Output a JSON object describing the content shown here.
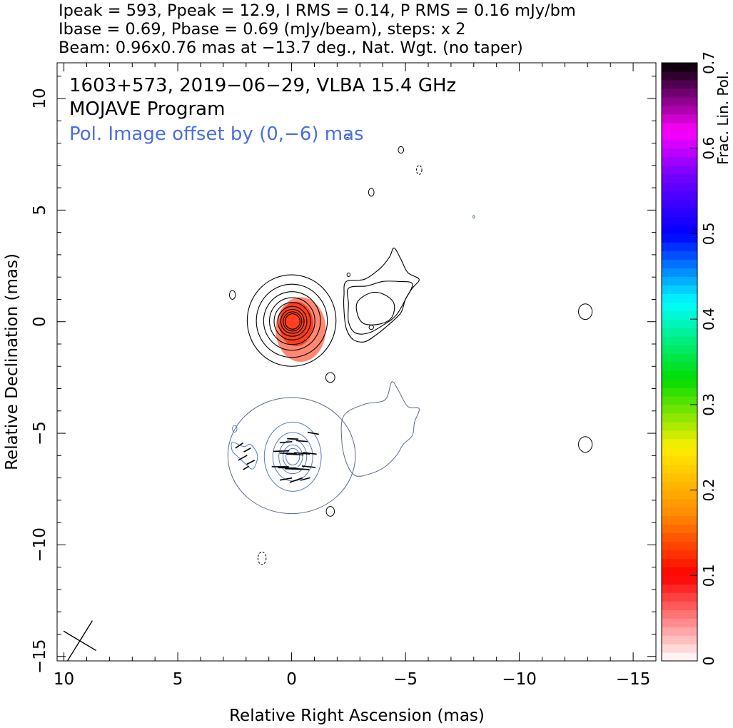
{
  "header": {
    "line1": "Ipeak = 593, Ppeak = 12.9, I RMS = 0.14, P RMS = 0.16 mJy/bm",
    "line2": "Ibase = 0.69, Pbase = 0.69 (mJy/beam), steps: x 2",
    "line3": "Beam: 0.96x0.76 mas at −13.7 deg., Nat. Wgt. (no taper)"
  },
  "chart_data": {
    "type": "contour",
    "title": "1603+573, 2019−06−29, VLBA 15.4 GHz",
    "subtitle": "MOJAVE Program",
    "note": "Pol. Image offset by (0,−6) mas",
    "xlabel": "Relative Right Ascension (mas)",
    "ylabel": "Relative Declination (mas)",
    "xlim": [
      10.3,
      -16
    ],
    "ylim": [
      -15.2,
      11.6
    ],
    "x_ticks": [
      {
        "v": 10,
        "label": "10"
      },
      {
        "v": 5,
        "label": "5"
      },
      {
        "v": 0,
        "label": "0"
      },
      {
        "v": -5,
        "label": "−5"
      },
      {
        "v": -10,
        "label": "−10"
      },
      {
        "v": -15,
        "label": "−15"
      }
    ],
    "y_ticks": [
      {
        "v": 10,
        "label": "10"
      },
      {
        "v": 5,
        "label": "5"
      },
      {
        "v": 0,
        "label": "0"
      },
      {
        "v": -5,
        "label": "−5"
      },
      {
        "v": -10,
        "label": "−10"
      },
      {
        "v": -15,
        "label": "−15"
      }
    ],
    "colorbar": {
      "label": "Frac. Lin. Pol.",
      "range": [
        0,
        0.7
      ],
      "ticks": [
        {
          "v": 0,
          "label": "0"
        },
        {
          "v": 0.1,
          "label": "0.1"
        },
        {
          "v": 0.2,
          "label": "0.2"
        },
        {
          "v": 0.3,
          "label": "0.3"
        },
        {
          "v": 0.4,
          "label": "0.4"
        },
        {
          "v": 0.5,
          "label": "0.5"
        },
        {
          "v": 0.6,
          "label": "0.6"
        },
        {
          "v": 0.7,
          "label": "0.7"
        }
      ],
      "stops": [
        {
          "v": 0.0,
          "c": "#ffffff"
        },
        {
          "v": 0.1,
          "c": "#ff0000"
        },
        {
          "v": 0.17,
          "c": "#ff8800"
        },
        {
          "v": 0.25,
          "c": "#ffee00"
        },
        {
          "v": 0.33,
          "c": "#00dd00"
        },
        {
          "v": 0.42,
          "c": "#00ffff"
        },
        {
          "v": 0.5,
          "c": "#0000ff"
        },
        {
          "v": 0.57,
          "c": "#7700ff"
        },
        {
          "v": 0.62,
          "c": "#ff00ff"
        },
        {
          "v": 0.7,
          "c": "#000000"
        }
      ]
    },
    "colors": {
      "intensity_contour": "#000000",
      "pol_contour": "#5577cc",
      "pol_annotation": "#4a6ee0"
    },
    "core": {
      "ra": 0,
      "dec": 0,
      "levels": 9,
      "max_rx": 1.95,
      "max_ry": 2.05,
      "frac_pol": 0.12
    },
    "jet_contours": [
      {
        "name": "jet-outer",
        "pts": [
          [
            -2.4,
            1.8
          ],
          [
            -3.2,
            1.9
          ],
          [
            -3.9,
            2.4
          ],
          [
            -4.3,
            2.9
          ],
          [
            -4.5,
            3.3
          ],
          [
            -4.8,
            2.8
          ],
          [
            -5.1,
            2.2
          ],
          [
            -5.6,
            1.9
          ],
          [
            -5.3,
            1.5
          ],
          [
            -5.0,
            1.0
          ],
          [
            -4.8,
            0.4
          ],
          [
            -4.3,
            -0.1
          ],
          [
            -3.7,
            -0.6
          ],
          [
            -3.2,
            -0.9
          ],
          [
            -2.7,
            -0.8
          ],
          [
            -2.4,
            -0.3
          ],
          [
            -2.3,
            0.5
          ],
          [
            -2.3,
            1.2
          ]
        ]
      },
      {
        "name": "jet-mid",
        "pts": [
          [
            -2.5,
            1.5
          ],
          [
            -3.3,
            1.6
          ],
          [
            -4.0,
            1.8
          ],
          [
            -4.7,
            1.8
          ],
          [
            -5.3,
            1.7
          ],
          [
            -5.0,
            1.0
          ],
          [
            -4.6,
            0.3
          ],
          [
            -4.1,
            -0.1
          ],
          [
            -3.4,
            -0.5
          ],
          [
            -2.8,
            -0.5
          ],
          [
            -2.5,
            0.0
          ],
          [
            -2.5,
            0.8
          ]
        ]
      },
      {
        "name": "jet-inner",
        "pts": [
          [
            -2.9,
            0.9
          ],
          [
            -3.5,
            1.3
          ],
          [
            -4.1,
            1.2
          ],
          [
            -4.5,
            0.8
          ],
          [
            -4.4,
            0.2
          ],
          [
            -3.9,
            -0.1
          ],
          [
            -3.2,
            -0.1
          ],
          [
            -2.9,
            0.3
          ]
        ]
      }
    ],
    "small_contours": [
      {
        "ra": 2.6,
        "dec": 1.2,
        "rx": 0.13,
        "ry": 0.2,
        "dashed": false,
        "pol": false
      },
      {
        "ra": -4.8,
        "dec": 7.7,
        "rx": 0.12,
        "ry": 0.15,
        "dashed": false,
        "pol": false
      },
      {
        "ra": -5.6,
        "dec": 6.8,
        "rx": 0.12,
        "ry": 0.2,
        "dashed": true,
        "pol": false
      },
      {
        "ra": -3.5,
        "dec": 5.8,
        "rx": 0.12,
        "ry": 0.18,
        "dashed": false,
        "pol": false
      },
      {
        "ra": -2.5,
        "dec": 8.3,
        "rx": 0.15,
        "ry": 0.05,
        "dashed": true,
        "pol": false
      },
      {
        "ra": -12.9,
        "dec": 0.45,
        "rx": 0.3,
        "ry": 0.35,
        "dashed": false,
        "pol": false
      },
      {
        "ra": -1.7,
        "dec": -2.5,
        "rx": 0.2,
        "ry": 0.22,
        "dashed": false,
        "pol": false
      },
      {
        "ra": -1.7,
        "dec": -8.5,
        "rx": 0.18,
        "ry": 0.22,
        "dashed": false,
        "pol": false
      },
      {
        "ra": -12.9,
        "dec": -5.5,
        "rx": 0.3,
        "ry": 0.35,
        "dashed": false,
        "pol": false
      },
      {
        "ra": 1.3,
        "dec": -10.6,
        "rx": 0.18,
        "ry": 0.28,
        "dashed": true,
        "pol": false
      },
      {
        "ra": -3.5,
        "dec": -0.25,
        "rx": 0.1,
        "ry": 0.1,
        "dashed": false,
        "pol": false
      },
      {
        "ra": -2.5,
        "dec": 2.1,
        "rx": 0.07,
        "ry": 0.08,
        "dashed": false,
        "pol": false
      },
      {
        "ra": 2.5,
        "dec": -4.8,
        "rx": 0.1,
        "ry": 0.15,
        "dashed": false,
        "pol": true
      },
      {
        "ra": -8.0,
        "dec": 4.7,
        "rx": 0.04,
        "ry": 0.06,
        "dashed": false,
        "pol": true
      }
    ],
    "pol_core": {
      "ra": 0,
      "dec": -6,
      "outer_rx": 2.8,
      "outer_ry": 2.6,
      "levels": 5,
      "max_rx": 1.25,
      "max_ry": 1.55
    },
    "pol_jet_contour": {
      "name": "pol-jet-outline",
      "pts": [
        [
          -2.3,
          -4.2
        ],
        [
          -3.2,
          -3.7
        ],
        [
          -4.1,
          -3.5
        ],
        [
          -4.4,
          -2.7
        ],
        [
          -4.7,
          -3.1
        ],
        [
          -5.1,
          -3.8
        ],
        [
          -5.6,
          -3.9
        ],
        [
          -5.4,
          -4.5
        ],
        [
          -5.3,
          -5.1
        ],
        [
          -4.9,
          -5.5
        ],
        [
          -4.6,
          -6.0
        ],
        [
          -4.1,
          -6.5
        ],
        [
          -3.5,
          -6.8
        ],
        [
          -2.8,
          -6.9
        ],
        [
          -2.4,
          -6.3
        ],
        [
          -2.2,
          -5.3
        ]
      ]
    },
    "pol_patch": {
      "name": "pol-patch-west",
      "pts": [
        [
          2.6,
          -5.4
        ],
        [
          2.1,
          -5.6
        ],
        [
          1.8,
          -5.5
        ],
        [
          1.5,
          -6.0
        ],
        [
          1.7,
          -6.6
        ],
        [
          2.1,
          -6.3
        ],
        [
          2.3,
          -6.1
        ],
        [
          2.6,
          -5.8
        ]
      ]
    },
    "evpa_vectors": [
      {
        "ra": -0.05,
        "dec": -5.25,
        "len": 0.5,
        "pa": 92
      },
      {
        "ra": -0.45,
        "dec": -5.35,
        "len": 0.5,
        "pa": 95
      },
      {
        "ra": 0.25,
        "dec": -5.4,
        "len": 0.55,
        "pa": 85
      },
      {
        "ra": -0.95,
        "dec": -5.0,
        "len": 0.5,
        "pa": 100
      },
      {
        "ra": 0.45,
        "dec": -5.8,
        "len": 0.7,
        "pa": 88
      },
      {
        "ra": 0.15,
        "dec": -5.9,
        "len": 0.75,
        "pa": 92
      },
      {
        "ra": -0.15,
        "dec": -5.95,
        "len": 0.75,
        "pa": 93
      },
      {
        "ra": -0.45,
        "dec": -5.9,
        "len": 0.7,
        "pa": 95
      },
      {
        "ra": -0.8,
        "dec": -5.9,
        "len": 0.6,
        "pa": 97
      },
      {
        "ra": 0.5,
        "dec": -6.5,
        "len": 0.75,
        "pa": 90
      },
      {
        "ra": 0.2,
        "dec": -6.55,
        "len": 0.8,
        "pa": 91
      },
      {
        "ra": -0.1,
        "dec": -6.6,
        "len": 0.8,
        "pa": 92
      },
      {
        "ra": -0.4,
        "dec": -6.6,
        "len": 0.75,
        "pa": 94
      },
      {
        "ra": -0.75,
        "dec": -6.5,
        "len": 0.6,
        "pa": 96
      },
      {
        "ra": 0.25,
        "dec": -7.05,
        "len": 0.55,
        "pa": 80
      },
      {
        "ra": -0.2,
        "dec": -7.1,
        "len": 0.6,
        "pa": 70
      },
      {
        "ra": -0.6,
        "dec": -7.05,
        "len": 0.45,
        "pa": 75
      },
      {
        "ra": 2.3,
        "dec": -5.55,
        "len": 0.4,
        "pa": 55
      },
      {
        "ra": 1.95,
        "dec": -5.75,
        "len": 0.35,
        "pa": 60
      },
      {
        "ra": 2.15,
        "dec": -6.1,
        "len": 0.45,
        "pa": 60
      },
      {
        "ra": 1.8,
        "dec": -6.3,
        "len": 0.4,
        "pa": 62
      },
      {
        "ra": 2.0,
        "dec": -6.55,
        "len": 0.3,
        "pa": 58
      }
    ],
    "beam": {
      "ra": 9.3,
      "dec": -14.3,
      "major": 0.96,
      "minor": 0.76,
      "pa": -13.7
    }
  }
}
